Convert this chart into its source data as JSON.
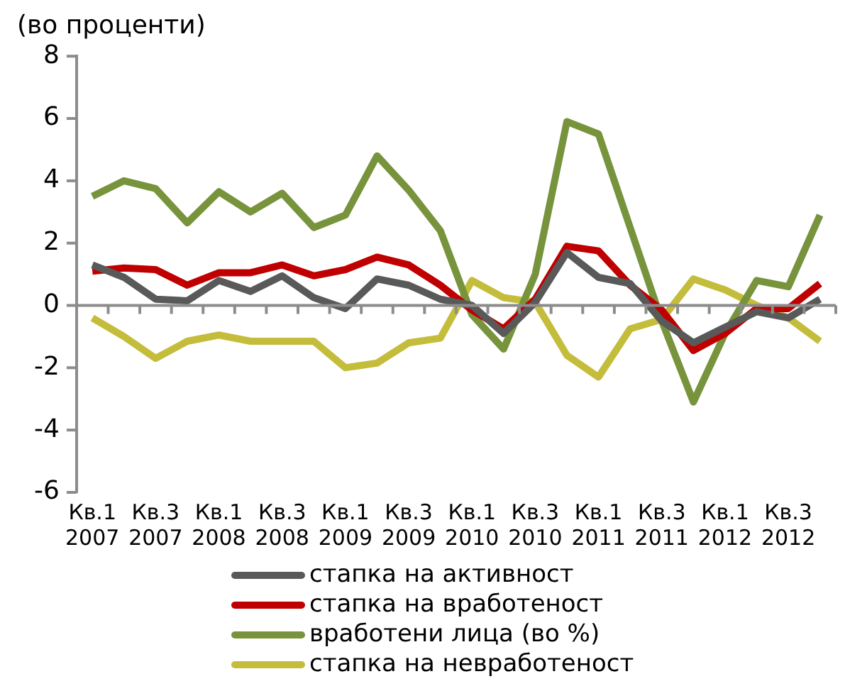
{
  "chart_data": {
    "type": "line",
    "title": "(во проценти)",
    "categories": [
      "Кв.1 2007",
      null,
      "Кв.3 2007",
      null,
      "Кв.1 2008",
      null,
      "Кв.3 2008",
      null,
      "Кв.1 2009",
      null,
      "Кв.3 2009",
      null,
      "Кв.1 2010",
      null,
      "Кв.3 2010",
      null,
      "Кв.1 2011",
      null,
      "Кв.3 2011",
      null,
      "Кв.1 2012",
      null,
      "Кв.3 2012",
      null
    ],
    "series": [
      {
        "name": "стапка на активност",
        "color": "#595959",
        "values": [
          1.3,
          0.9,
          0.2,
          0.15,
          0.8,
          0.45,
          0.95,
          0.25,
          -0.1,
          0.85,
          0.65,
          0.2,
          0.0,
          -0.9,
          0.1,
          1.7,
          0.9,
          0.7,
          -0.5,
          -1.2,
          -0.7,
          -0.2,
          -0.4,
          0.2
        ]
      },
      {
        "name": "стапка на вработеност",
        "color": "#c00000",
        "values": [
          1.1,
          1.2,
          1.15,
          0.65,
          1.05,
          1.05,
          1.3,
          0.95,
          1.15,
          1.55,
          1.3,
          0.65,
          -0.15,
          -0.75,
          0.2,
          1.9,
          1.75,
          0.65,
          -0.15,
          -1.45,
          -0.9,
          -0.1,
          -0.1,
          0.7
        ]
      },
      {
        "name": "вработени лица (во %)",
        "color": "#77933c",
        "values": [
          3.5,
          4.0,
          3.75,
          2.65,
          3.65,
          3.0,
          3.6,
          2.5,
          2.9,
          4.8,
          3.7,
          2.4,
          -0.3,
          -1.4,
          1.0,
          5.9,
          5.5,
          2.5,
          -0.5,
          -3.1,
          -0.9,
          0.8,
          0.6,
          2.9
        ]
      },
      {
        "name": "стапка на невработеност",
        "color": "#c4bd3c",
        "values": [
          -0.4,
          -1.0,
          -1.7,
          -1.15,
          -0.95,
          -1.15,
          -1.15,
          -1.15,
          -2.0,
          -1.85,
          -1.2,
          -1.05,
          0.8,
          0.25,
          0.1,
          -1.6,
          -2.3,
          -0.75,
          -0.45,
          0.85,
          0.5,
          0.0,
          -0.4,
          -1.15
        ]
      }
    ],
    "ylim": [
      -6,
      8
    ],
    "yticks": [
      -6,
      -4,
      -2,
      0,
      2,
      4,
      6,
      8
    ],
    "ref_lines": [
      {
        "axis": "y",
        "value": 0,
        "color": "#8c8c8c"
      }
    ],
    "grid": false,
    "legend": "bottom"
  }
}
